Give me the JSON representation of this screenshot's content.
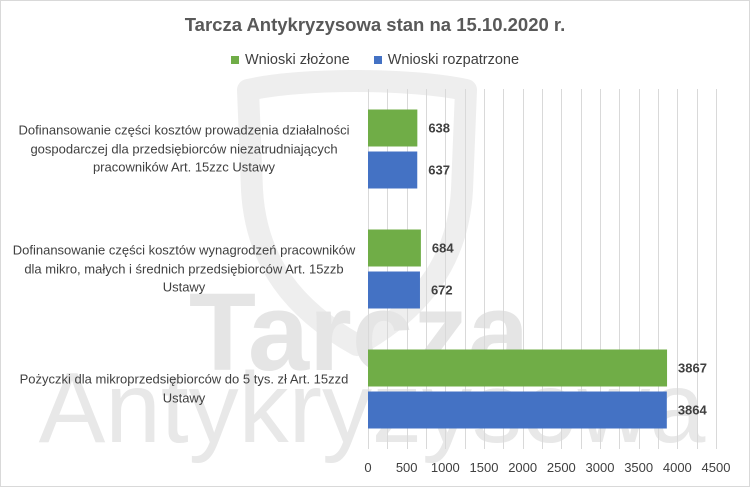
{
  "chart_data": {
    "type": "bar",
    "orientation": "horizontal",
    "title": "Tarcza Antykryzysowa stan na 15.10.2020 r.",
    "categories": [
      "Dofinansowanie części kosztów prowadzenia działalności\ngospodarczej dla przedsiębiorców niezatrudniających\npracowników Art. 15zzc Ustawy",
      "Dofinansowanie części kosztów wynagrodzeń pracowników\ndla mikro, małych i średnich przedsiębiorców Art. 15zzb\nUstawy",
      "Pożyczki dla mikroprzedsiębiorców do 5 tys. zł Art. 15zzd\nUstawy"
    ],
    "series": [
      {
        "name": "Wnioski złożone",
        "color": "#70AD47",
        "values": [
          638,
          684,
          3867
        ]
      },
      {
        "name": "Wnioski rozpatrzone",
        "color": "#4472C4",
        "values": [
          637,
          672,
          3864
        ]
      }
    ],
    "xlim": [
      0,
      4500
    ],
    "xticks": [
      0,
      500,
      1000,
      1500,
      2000,
      2500,
      3000,
      3500,
      4000,
      4500
    ],
    "grid": true,
    "grid_step": 250,
    "legend_position": "top",
    "data_labels": true
  },
  "watermark": {
    "line1": "Tarcza",
    "line2": "Antykryzysowa"
  }
}
